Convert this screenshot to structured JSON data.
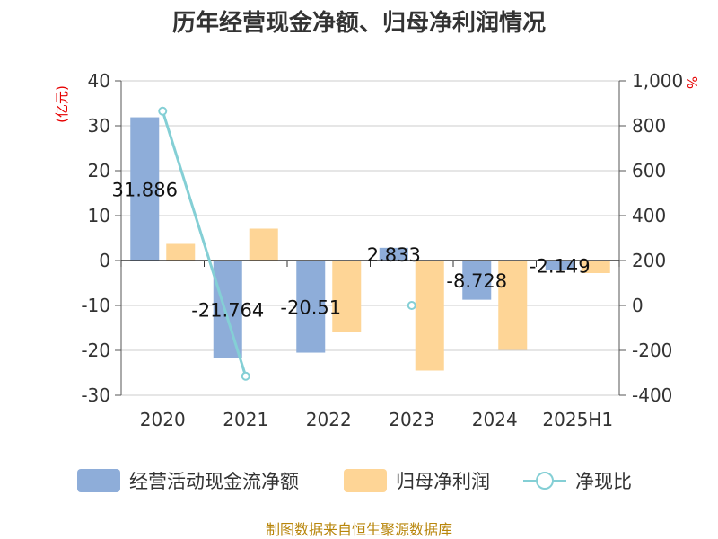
{
  "title": "历年经营现金净额、归母净利润情况",
  "source": "制图数据来自恒生聚源数据库",
  "colors": {
    "operating_cash": "#8eadd9",
    "net_profit": "#fed596",
    "ratio": "#84cfd5",
    "axis": "#555555",
    "grid": "#cccccc",
    "unit": "#e60000",
    "source": "#b8860b"
  },
  "chart_data": {
    "type": "bar",
    "title": "历年经营现金净额、归母净利润情况",
    "categories": [
      "2020",
      "2021",
      "2022",
      "2023",
      "2024",
      "2025H1"
    ],
    "y_left": {
      "unit_label": "(亿元)",
      "min": -30,
      "max": 40,
      "ticks": [
        40,
        30,
        20,
        10,
        0,
        -10,
        -20,
        -30
      ],
      "tick_labels": [
        "40",
        "30",
        "20",
        "10",
        "0",
        "-10",
        "-20",
        "-30"
      ]
    },
    "y_right": {
      "unit_label": "%",
      "min": -400,
      "max": 1000,
      "ticks": [
        1000,
        800,
        600,
        400,
        200,
        0,
        -200,
        -400
      ],
      "tick_labels": [
        "1,000",
        "800",
        "600",
        "400",
        "200",
        "0",
        "-200",
        "-400"
      ]
    },
    "series": [
      {
        "name": "经营活动现金流净额",
        "type": "bar",
        "axis": "left",
        "values": [
          31.886,
          -21.764,
          -20.51,
          2.833,
          -8.728,
          -2.149
        ],
        "labels": [
          "31.886",
          "-21.764",
          "-20.51",
          "2.833",
          "-8.728",
          "-2.149"
        ]
      },
      {
        "name": "归母净利润",
        "type": "bar",
        "axis": "left",
        "values": [
          3.7,
          7.1,
          -16.0,
          -24.5,
          -19.9,
          -2.8
        ]
      },
      {
        "name": "净现比",
        "type": "line",
        "axis": "right",
        "values": [
          865,
          -315,
          null,
          0,
          null,
          null
        ]
      }
    ],
    "grid": true,
    "legend_position": "bottom"
  }
}
